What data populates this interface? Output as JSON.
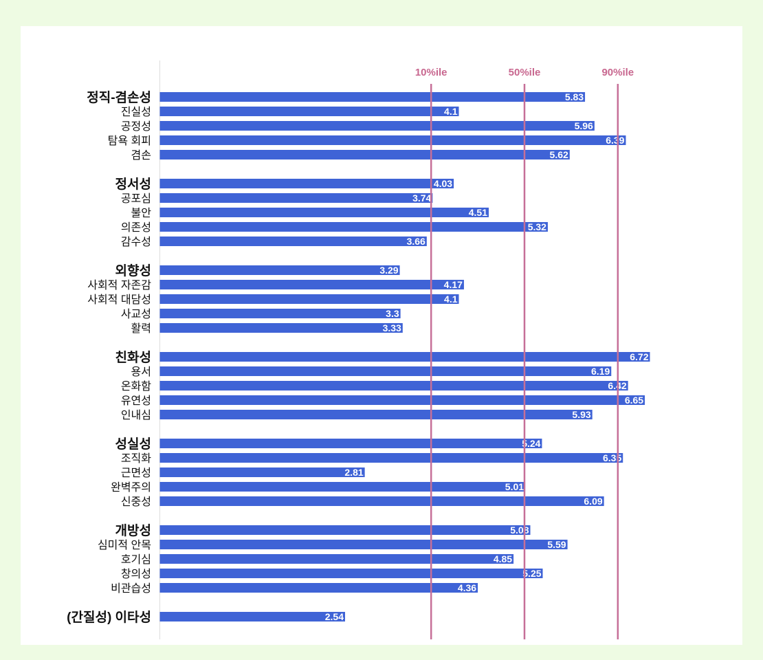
{
  "chart_data": {
    "type": "bar",
    "orientation": "horizontal",
    "title": "",
    "xlabel": "",
    "ylabel": "",
    "xlim": [
      0,
      7
    ],
    "grid": false,
    "reference_lines": [
      {
        "label": "10%ile",
        "value": 3.72
      },
      {
        "label": "50%ile",
        "value": 5.0
      },
      {
        "label": "90%ile",
        "value": 6.28
      }
    ],
    "groups": [
      {
        "name": "정직-겸손성",
        "value": 5.83,
        "facets": [
          {
            "name": "진실성",
            "value": 4.1
          },
          {
            "name": "공정성",
            "value": 5.96
          },
          {
            "name": "탐욕 회피",
            "value": 6.39
          },
          {
            "name": "겸손",
            "value": 5.62
          }
        ]
      },
      {
        "name": "정서성",
        "value": 4.03,
        "facets": [
          {
            "name": "공포심",
            "value": 3.74
          },
          {
            "name": "불안",
            "value": 4.51
          },
          {
            "name": "의존성",
            "value": 5.32
          },
          {
            "name": "감수성",
            "value": 3.66
          }
        ]
      },
      {
        "name": "외향성",
        "value": 3.29,
        "facets": [
          {
            "name": "사회적 자존감",
            "value": 4.17
          },
          {
            "name": "사회적 대담성",
            "value": 4.1
          },
          {
            "name": "사교성",
            "value": 3.3
          },
          {
            "name": "활력",
            "value": 3.33
          }
        ]
      },
      {
        "name": "친화성",
        "value": 6.72,
        "facets": [
          {
            "name": "용서",
            "value": 6.19
          },
          {
            "name": "온화함",
            "value": 6.42
          },
          {
            "name": "유연성",
            "value": 6.65
          },
          {
            "name": "인내심",
            "value": 5.93
          }
        ]
      },
      {
        "name": "성실성",
        "value": 5.24,
        "facets": [
          {
            "name": "조직화",
            "value": 6.35
          },
          {
            "name": "근면성",
            "value": 2.81
          },
          {
            "name": "완벽주의",
            "value": 5.01
          },
          {
            "name": "신중성",
            "value": 6.09
          }
        ]
      },
      {
        "name": "개방성",
        "value": 5.08,
        "facets": [
          {
            "name": "심미적 안목",
            "value": 5.59
          },
          {
            "name": "호기심",
            "value": 4.85
          },
          {
            "name": "창의성",
            "value": 5.25
          },
          {
            "name": "비관습성",
            "value": 4.36
          }
        ]
      },
      {
        "name": "(간질성) 이타성",
        "value": 2.54,
        "facets": []
      }
    ],
    "colors": {
      "bar": "#3f63d6",
      "reference_line": "#c66f98",
      "reference_label": "#c8678f"
    }
  }
}
